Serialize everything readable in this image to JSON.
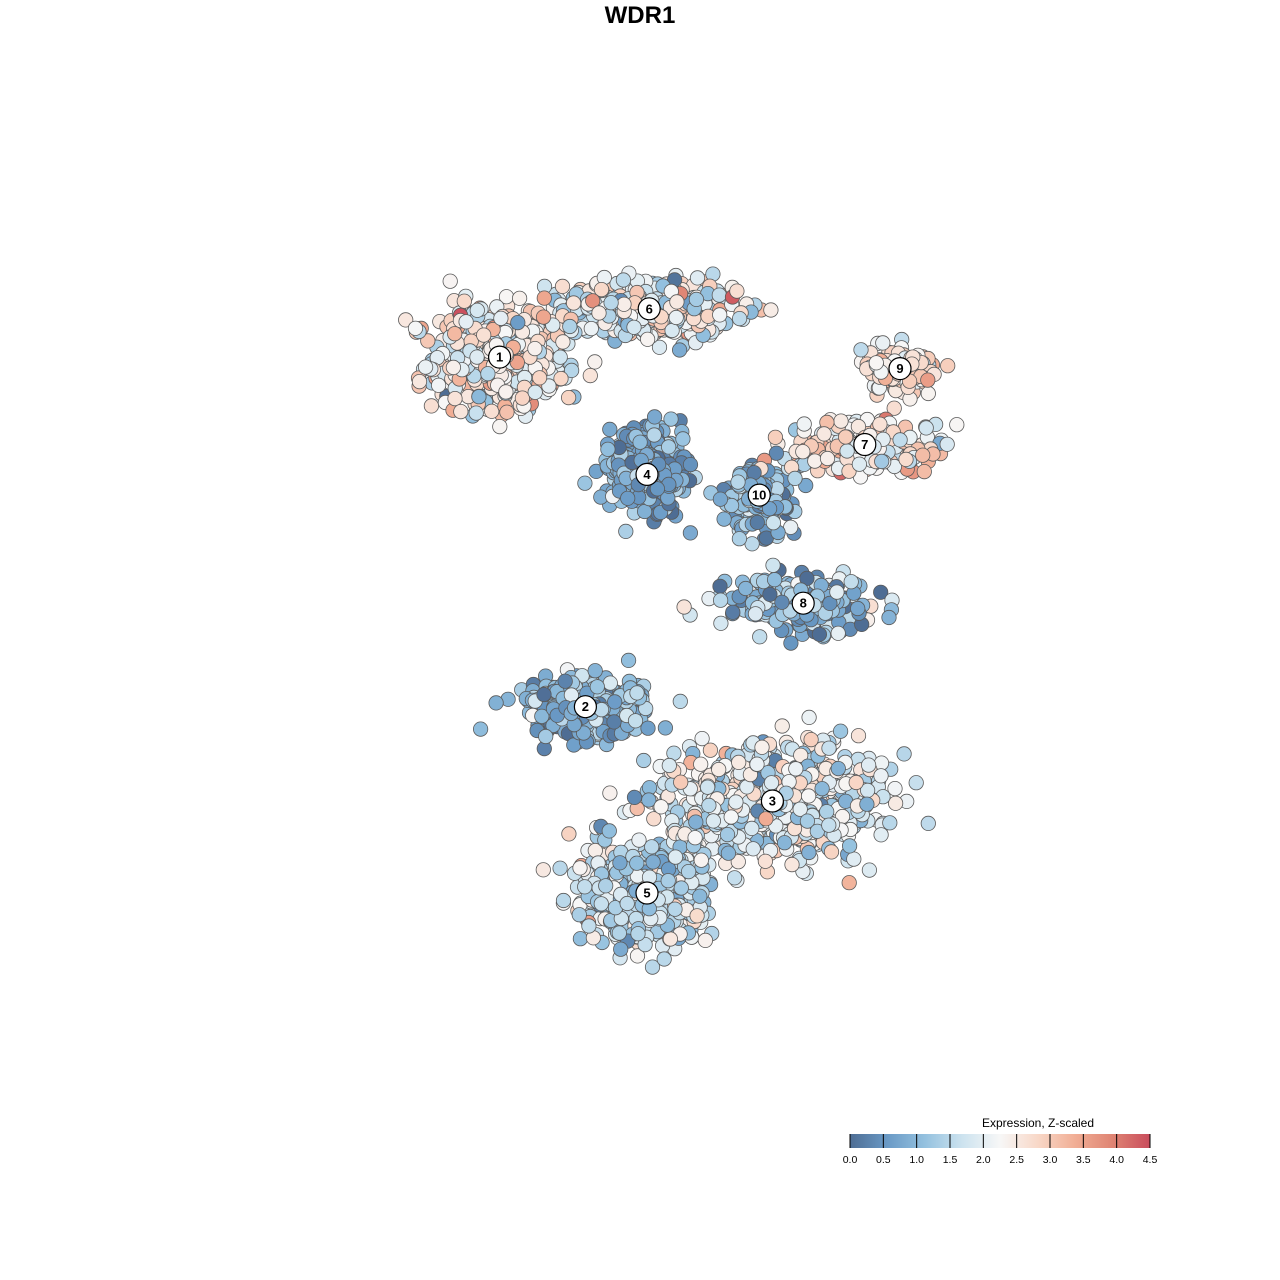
{
  "chart_data": {
    "type": "scatter",
    "title": "WDR1",
    "xlabel": "",
    "ylabel": "",
    "grid": false,
    "legend_position": "bottom-right",
    "legend": {
      "title": "Expression, Z-scaled",
      "ticks": [
        "0.0",
        "0.5",
        "1.0",
        "1.5",
        "2.0",
        "2.5",
        "3.0",
        "3.5",
        "4.0",
        "4.5"
      ],
      "range": [
        0,
        4.5
      ]
    },
    "colorscale": [
      "#4e6d94",
      "#6a9ac6",
      "#94c1df",
      "#cde3ef",
      "#f7f7f7",
      "#f8d8c8",
      "#f1ae95",
      "#df8473",
      "#c94c5c"
    ],
    "clusters": [
      {
        "label": "1",
        "x": -8.2,
        "y": 7.3,
        "spread": [
          2.7,
          2.0
        ],
        "n": 620,
        "mean_expr": 2.4,
        "sd_expr": 0.6
      },
      {
        "label": "6",
        "x": -1.4,
        "y": 9.4,
        "spread": [
          3.5,
          1.1
        ],
        "n": 520,
        "mean_expr": 2.1,
        "sd_expr": 0.7
      },
      {
        "label": "9",
        "x": 10.0,
        "y": 6.8,
        "spread": [
          1.6,
          0.8
        ],
        "n": 130,
        "mean_expr": 2.5,
        "sd_expr": 0.5
      },
      {
        "label": "7",
        "x": 8.4,
        "y": 3.5,
        "spread": [
          3.2,
          1.1
        ],
        "n": 230,
        "mean_expr": 2.5,
        "sd_expr": 0.6
      },
      {
        "label": "4",
        "x": -1.5,
        "y": 2.2,
        "spread": [
          1.5,
          1.5
        ],
        "n": 480,
        "mean_expr": 0.7,
        "sd_expr": 0.4
      },
      {
        "label": "10",
        "x": 3.6,
        "y": 1.3,
        "spread": [
          1.6,
          1.3
        ],
        "n": 150,
        "mean_expr": 0.9,
        "sd_expr": 0.5
      },
      {
        "label": "8",
        "x": 5.6,
        "y": -3.4,
        "spread": [
          2.8,
          1.0
        ],
        "n": 260,
        "mean_expr": 1.0,
        "sd_expr": 0.6
      },
      {
        "label": "2",
        "x": -4.3,
        "y": -7.9,
        "spread": [
          2.4,
          1.2
        ],
        "n": 330,
        "mean_expr": 0.9,
        "sd_expr": 0.5
      },
      {
        "label": "3",
        "x": 4.2,
        "y": -12.0,
        "spread": [
          4.2,
          2.0
        ],
        "n": 950,
        "mean_expr": 2.0,
        "sd_expr": 0.6
      },
      {
        "label": "5",
        "x": -1.5,
        "y": -16.0,
        "spread": [
          2.5,
          2.0
        ],
        "n": 650,
        "mean_expr": 1.6,
        "sd_expr": 0.6
      }
    ],
    "x_range": [
      -20,
      20
    ],
    "y_range": [
      -25,
      15
    ]
  }
}
